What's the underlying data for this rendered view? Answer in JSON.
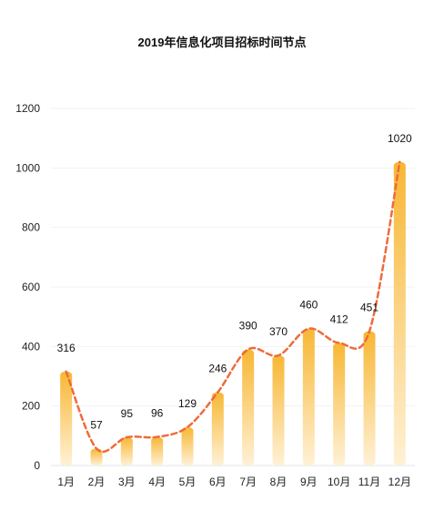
{
  "chart_data": {
    "type": "bar",
    "title": "2019年信息化项目招标时间节点",
    "xlabel": "",
    "ylabel": "",
    "categories": [
      "1月",
      "2月",
      "3月",
      "4月",
      "5月",
      "6月",
      "7月",
      "8月",
      "9月",
      "10月",
      "11月",
      "12月"
    ],
    "values": [
      316,
      57,
      95,
      96,
      129,
      246,
      390,
      370,
      460,
      412,
      451,
      1020
    ],
    "ylim": [
      0,
      1200
    ],
    "yticks": [
      0,
      200,
      400,
      600,
      800,
      1000,
      1200
    ],
    "grid": true,
    "trendline": true,
    "colors": {
      "bar_top": "#f7b733",
      "bar_bottom": "#fff1d6",
      "trend": "#ee6b3b"
    }
  }
}
